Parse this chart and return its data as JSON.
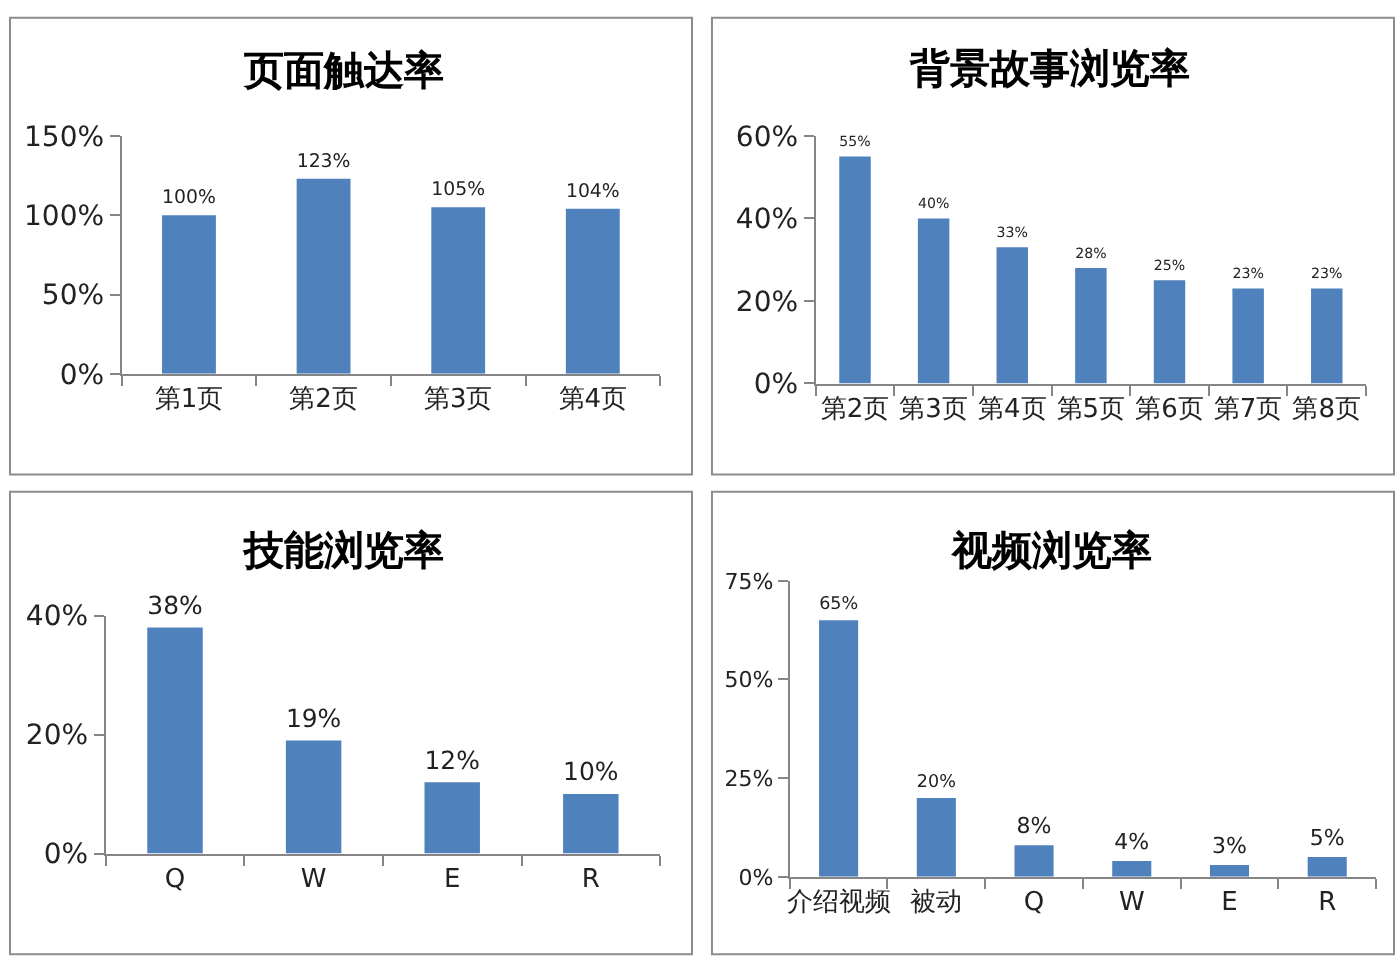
{
  "chart_data": [
    {
      "type": "bar",
      "title": "页面触达率",
      "categories": [
        "第1页",
        "第2页",
        "第3页",
        "第4页"
      ],
      "values": [
        100,
        123,
        105,
        104
      ],
      "value_labels": [
        "100%",
        "123%",
        "105%",
        "104%"
      ],
      "color": "#4f81bd",
      "ylim": [
        0,
        150
      ],
      "yticks": [
        {
          "value": 0,
          "label": "0%"
        },
        {
          "value": 50,
          "label": "50%"
        },
        {
          "value": 100,
          "label": "100%"
        },
        {
          "value": 150,
          "label": "150%"
        }
      ]
    },
    {
      "type": "bar",
      "title": "背景故事浏览率",
      "categories": [
        "第2页",
        "第3页",
        "第4页",
        "第5页",
        "第6页",
        "第7页",
        "第8页"
      ],
      "values": [
        55,
        40,
        33,
        28,
        25,
        23,
        23
      ],
      "value_labels": [
        "55%",
        "40%",
        "33%",
        "28%",
        "25%",
        "23%",
        "23%"
      ],
      "color": "#4f81bd",
      "ylim": [
        0,
        60
      ],
      "yticks": [
        {
          "value": 0,
          "label": "0%"
        },
        {
          "value": 20,
          "label": "20%"
        },
        {
          "value": 40,
          "label": "40%"
        },
        {
          "value": 60,
          "label": "60%"
        }
      ]
    },
    {
      "type": "bar",
      "title": "技能浏览率",
      "categories": [
        "Q",
        "W",
        "E",
        "R"
      ],
      "values": [
        38,
        19,
        12,
        10
      ],
      "value_labels": [
        "38%",
        "19%",
        "12%",
        "10%"
      ],
      "color": "#4f81bd",
      "ylim": [
        0,
        40
      ],
      "yticks": [
        {
          "value": 0,
          "label": "0%"
        },
        {
          "value": 20,
          "label": "20%"
        },
        {
          "value": 40,
          "label": "40%"
        }
      ]
    },
    {
      "type": "bar",
      "title": "视频浏览率",
      "categories": [
        "介绍视频",
        "被动",
        "Q",
        "W",
        "E",
        "R"
      ],
      "values": [
        65,
        20,
        8,
        4,
        3,
        5
      ],
      "value_labels": [
        "65%",
        "20%",
        "8%",
        "4%",
        "3%",
        "5%"
      ],
      "color": "#4f81bd",
      "ylim": [
        0,
        75
      ],
      "yticks": [
        {
          "value": 0,
          "label": "0%"
        },
        {
          "value": 25,
          "label": "25%"
        },
        {
          "value": 50,
          "label": "50%"
        },
        {
          "value": 75,
          "label": "75%"
        }
      ]
    }
  ]
}
